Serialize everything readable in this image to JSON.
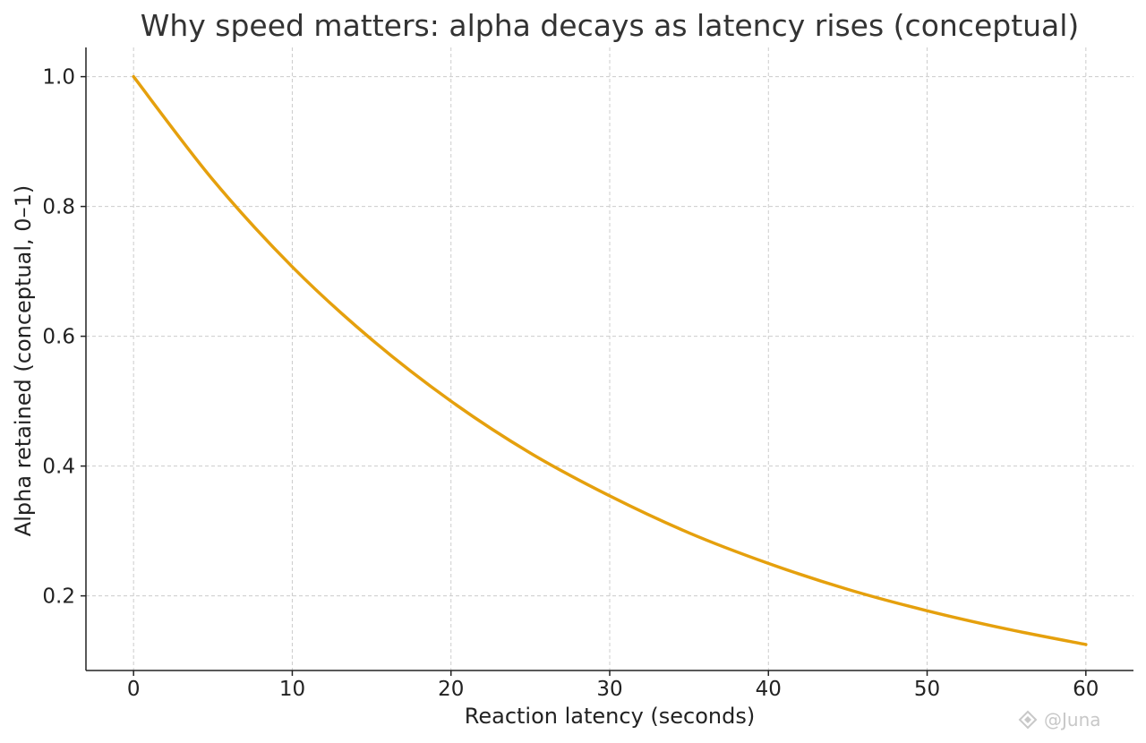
{
  "chart_data": {
    "type": "line",
    "title": "Why speed matters: alpha decays as latency rises (conceptual)",
    "xlabel": "Reaction latency (seconds)",
    "ylabel": "Alpha retained (conceptual, 0–1)",
    "xlim": [
      -3,
      63
    ],
    "ylim": [
      0.085,
      1.045
    ],
    "x_ticks": [
      0,
      10,
      20,
      30,
      40,
      50,
      60
    ],
    "x_tick_labels": [
      "0",
      "10",
      "20",
      "30",
      "40",
      "50",
      "60"
    ],
    "y_ticks": [
      0.2,
      0.4,
      0.6,
      0.8,
      1.0
    ],
    "y_tick_labels": [
      "0.2",
      "0.4",
      "0.6",
      "0.8",
      "1.0"
    ],
    "grid": true,
    "legend": "none",
    "series": [
      {
        "color": "#E5A00D",
        "x": [
          0,
          5,
          10,
          15,
          20,
          25,
          30,
          35,
          40,
          45,
          50,
          55,
          60
        ],
        "y": [
          1.0,
          0.841,
          0.707,
          0.595,
          0.5,
          0.42,
          0.354,
          0.297,
          0.25,
          0.21,
          0.177,
          0.149,
          0.125
        ]
      }
    ]
  },
  "watermark": {
    "text": "@Juna"
  }
}
